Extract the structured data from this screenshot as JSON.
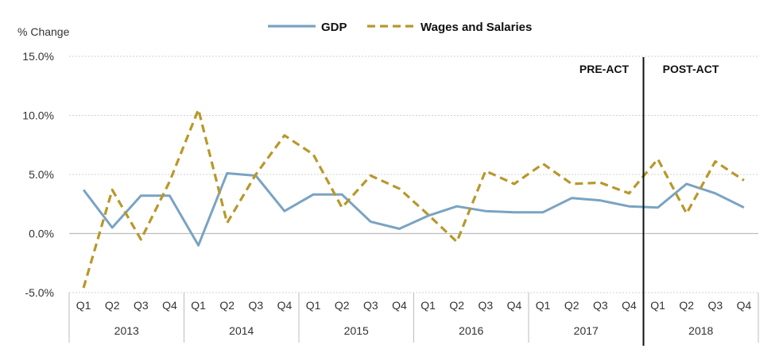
{
  "chart_data": {
    "type": "line",
    "ylabel": "% Change",
    "ylim": [
      -5,
      15
    ],
    "yticks": [
      "15.0%",
      "10.0%",
      "5.0%",
      "0.0%",
      "-5.0%"
    ],
    "yticks_values": [
      15,
      10,
      5,
      0,
      -5
    ],
    "grid": true,
    "legend": "top-center",
    "quarters": [
      "Q1",
      "Q2",
      "Q3",
      "Q4",
      "Q1",
      "Q2",
      "Q3",
      "Q4",
      "Q1",
      "Q2",
      "Q3",
      "Q4",
      "Q1",
      "Q2",
      "Q3",
      "Q4",
      "Q1",
      "Q2",
      "Q3",
      "Q4",
      "Q1",
      "Q2",
      "Q3",
      "Q4"
    ],
    "years": [
      "2013",
      "2014",
      "2015",
      "2016",
      "2017",
      "2018"
    ],
    "series": [
      {
        "name": "GDP",
        "color": "#7aa3c2",
        "style": "solid",
        "values": [
          3.7,
          0.5,
          3.2,
          3.2,
          -1.0,
          5.1,
          4.9,
          1.9,
          3.3,
          3.3,
          1.0,
          0.4,
          1.5,
          2.3,
          1.9,
          1.8,
          1.8,
          3.0,
          2.8,
          2.3,
          2.2,
          4.2,
          3.4,
          2.2
        ]
      },
      {
        "name": "Wages and Salaries",
        "color": "#b8982a",
        "style": "dashed",
        "values": [
          -4.6,
          3.7,
          -0.5,
          4.4,
          10.5,
          0.9,
          5.0,
          8.3,
          6.7,
          2.2,
          4.9,
          3.8,
          1.6,
          -0.7,
          5.3,
          4.2,
          5.9,
          4.2,
          4.3,
          3.4,
          6.3,
          1.7,
          6.1,
          4.5
        ]
      }
    ],
    "annotations": {
      "pre_act": "PRE-ACT",
      "post_act": "POST-ACT",
      "divider_after_index": 19
    }
  }
}
